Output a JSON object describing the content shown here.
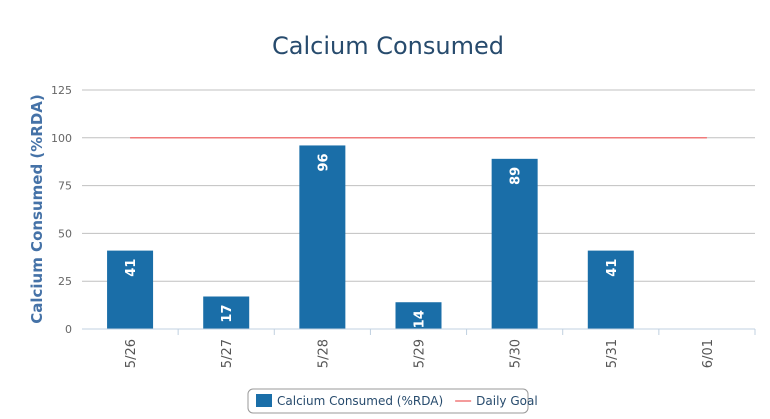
{
  "chart_data": {
    "type": "bar",
    "title": "Calcium Consumed",
    "y_axis_label": "Calcium Consumed (%RDA)",
    "categories": [
      "5/26",
      "5/27",
      "5/28",
      "5/29",
      "5/30",
      "5/31",
      "6/01"
    ],
    "series": [
      {
        "name": "Calcium Consumed (%RDA)",
        "type": "bar",
        "color": "#1a6ea8",
        "values": [
          41,
          17,
          96,
          14,
          89,
          41,
          null
        ]
      },
      {
        "name": "Daily Goal",
        "type": "line",
        "color": "#f07a7a",
        "values": [
          100,
          100,
          100,
          100,
          100,
          100,
          100
        ]
      }
    ],
    "ylim": [
      0,
      125
    ],
    "yticks": [
      0,
      25,
      50,
      75,
      100,
      125
    ],
    "grid": true,
    "legend": "bottom"
  }
}
